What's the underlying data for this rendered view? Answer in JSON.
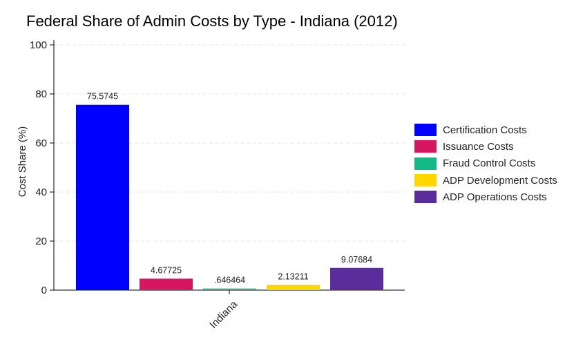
{
  "chart_data": {
    "type": "bar",
    "title": "Federal Share of Admin Costs by Type - Indiana (2012)",
    "ylabel": "Cost Share (%)",
    "xlabel": "",
    "ylim": [
      0,
      100
    ],
    "yticks": [
      0,
      20,
      40,
      60,
      80,
      100
    ],
    "category": "Indiana",
    "grid": true,
    "legend_position": "right",
    "series": [
      {
        "name": "Certification Costs",
        "value": 75.5745,
        "label": "75.5745",
        "color": "#0000ff"
      },
      {
        "name": "Issuance Costs",
        "value": 4.67725,
        "label": "4.67725",
        "color": "#d6175f"
      },
      {
        "name": "Fraud Control Costs",
        "value": 0.646464,
        "label": ".646464",
        "color": "#12b985"
      },
      {
        "name": "ADP Development Costs",
        "value": 2.13211,
        "label": "2.13211",
        "color": "#ffd700"
      },
      {
        "name": "ADP Operations Costs",
        "value": 9.07684,
        "label": "9.07684",
        "color": "#5b2c9c"
      }
    ]
  }
}
